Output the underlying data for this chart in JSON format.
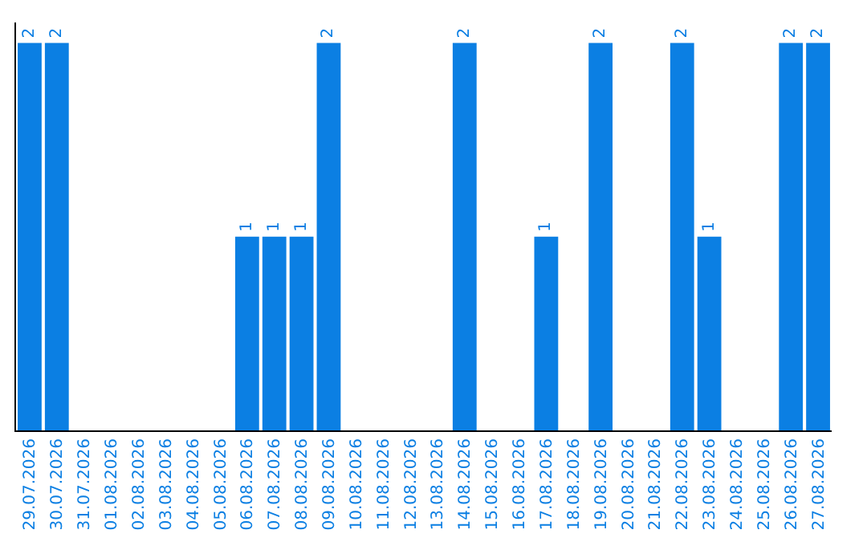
{
  "chart_data": {
    "type": "bar",
    "categories": [
      "29.07.2026",
      "30.07.2026",
      "31.07.2026",
      "01.08.2026",
      "02.08.2026",
      "03.08.2026",
      "04.08.2026",
      "05.08.2026",
      "06.08.2026",
      "07.08.2026",
      "08.08.2026",
      "09.08.2026",
      "10.08.2026",
      "11.08.2026",
      "12.08.2026",
      "13.08.2026",
      "14.08.2026",
      "15.08.2026",
      "16.08.2026",
      "17.08.2026",
      "18.08.2026",
      "19.08.2026",
      "20.08.2026",
      "21.08.2026",
      "22.08.2026",
      "23.08.2026",
      "24.08.2026",
      "25.08.2026",
      "26.08.2026",
      "27.08.2026"
    ],
    "values": [
      2,
      2,
      0,
      0,
      0,
      0,
      0,
      0,
      1,
      1,
      1,
      2,
      0,
      0,
      0,
      0,
      2,
      0,
      0,
      1,
      0,
      2,
      0,
      0,
      2,
      1,
      0,
      0,
      2,
      2
    ],
    "value_labels": [
      "2",
      "2",
      null,
      null,
      null,
      null,
      null,
      null,
      "1",
      "1",
      "1",
      "2",
      null,
      null,
      null,
      null,
      "2",
      null,
      null,
      "1",
      null,
      "2",
      null,
      null,
      "2",
      "1",
      null,
      null,
      "2",
      "2"
    ],
    "color": "#0b7fe3",
    "legend": false
  }
}
